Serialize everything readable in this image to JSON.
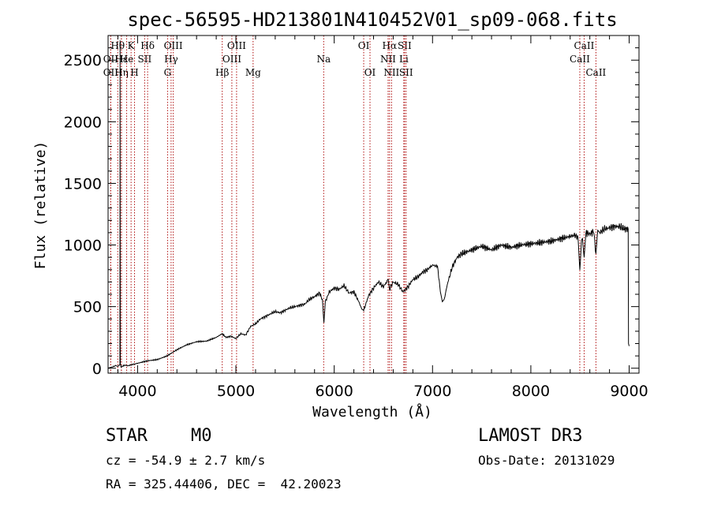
{
  "chart_data": {
    "type": "line",
    "title": "spec-56595-HD213801N410452V01_sp09-068.fits",
    "xlabel": "Wavelength (Å)",
    "ylabel": "Flux (relative)",
    "xlim": [
      3700,
      9100
    ],
    "ylim": [
      -40,
      2700
    ],
    "xticks": [
      4000,
      5000,
      6000,
      7000,
      8000,
      9000
    ],
    "yticks": [
      0,
      500,
      1000,
      1500,
      2000,
      2500
    ],
    "series": [
      {
        "name": "flux",
        "x": [
          3700,
          3780,
          3800,
          3820,
          3822,
          3824,
          3830,
          3870,
          3900,
          3950,
          4000,
          4100,
          4200,
          4300,
          4400,
          4500,
          4600,
          4700,
          4800,
          4860,
          4900,
          4950,
          5000,
          5050,
          5100,
          5150,
          5200,
          5250,
          5300,
          5350,
          5400,
          5450,
          5500,
          5550,
          5600,
          5650,
          5700,
          5750,
          5800,
          5850,
          5880,
          5895,
          5910,
          5950,
          6000,
          6050,
          6100,
          6150,
          6200,
          6250,
          6280,
          6300,
          6350,
          6400,
          6450,
          6500,
          6550,
          6562,
          6600,
          6650,
          6700,
          6750,
          6800,
          6850,
          6900,
          6950,
          7000,
          7020,
          7050,
          7080,
          7100,
          7120,
          7150,
          7200,
          7250,
          7300,
          7400,
          7500,
          7600,
          7700,
          7800,
          7900,
          8000,
          8100,
          8200,
          8300,
          8400,
          8450,
          8480,
          8498,
          8520,
          8542,
          8560,
          8600,
          8640,
          8662,
          8680,
          8700,
          8750,
          8800,
          8850,
          8900,
          8950,
          8990,
          8993,
          9000
        ],
        "y": [
          0,
          20,
          15,
          30,
          2660,
          40,
          10,
          25,
          20,
          30,
          40,
          60,
          70,
          100,
          150,
          190,
          215,
          220,
          250,
          280,
          250,
          260,
          240,
          280,
          270,
          340,
          360,
          400,
          420,
          440,
          460,
          450,
          470,
          490,
          500,
          510,
          520,
          560,
          580,
          610,
          560,
          370,
          540,
          620,
          650,
          640,
          670,
          610,
          620,
          540,
          480,
          470,
          590,
          650,
          700,
          660,
          720,
          640,
          700,
          680,
          620,
          660,
          720,
          740,
          780,
          800,
          840,
          830,
          830,
          620,
          540,
          560,
          680,
          820,
          900,
          930,
          960,
          990,
          960,
          1000,
          980,
          1000,
          1010,
          1020,
          1030,
          1050,
          1070,
          1080,
          1060,
          800,
          1080,
          900,
          1100,
          1090,
          1110,
          930,
          1120,
          1100,
          1130,
          1140,
          1150,
          1150,
          1130,
          1130,
          200,
          180
        ]
      }
    ],
    "line_markers": [
      {
        "label": "Hθ",
        "x": 3798,
        "row": 1
      },
      {
        "label": "OII",
        "x": 3727,
        "row": 2
      },
      {
        "label": "OII",
        "x": 3727,
        "row": 3
      },
      {
        "label": "Hε",
        "x": 3835,
        "row": 2
      },
      {
        "label": "Hη",
        "x": 3836,
        "row": 3
      },
      {
        "label": "K",
        "x": 3934,
        "row": 1
      },
      {
        "label": "He",
        "x": 3889,
        "row": 2
      },
      {
        "label": "SII",
        "x": 4072,
        "row": 2
      },
      {
        "label": "H",
        "x": 3969,
        "row": 3
      },
      {
        "label": "Hδ",
        "x": 4102,
        "row": 1
      },
      {
        "label": "OIII",
        "x": 4363,
        "row": 1
      },
      {
        "label": "Hγ",
        "x": 4341,
        "row": 2
      },
      {
        "label": "G",
        "x": 4305,
        "row": 3
      },
      {
        "label": "Hβ",
        "x": 4861,
        "row": 3
      },
      {
        "label": "OIII",
        "x": 5007,
        "row": 1
      },
      {
        "label": "OIII",
        "x": 4959,
        "row": 2
      },
      {
        "label": "Mg",
        "x": 5175,
        "row": 3
      },
      {
        "label": "Na",
        "x": 5893,
        "row": 2
      },
      {
        "label": "OI",
        "x": 6300,
        "row": 1
      },
      {
        "label": "OI",
        "x": 6364,
        "row": 3
      },
      {
        "label": "Hα",
        "x": 6563,
        "row": 1
      },
      {
        "label": "NII",
        "x": 6548,
        "row": 2
      },
      {
        "label": "NII",
        "x": 6583,
        "row": 3
      },
      {
        "label": "Li",
        "x": 6708,
        "row": 2
      },
      {
        "label": "SII",
        "x": 6716,
        "row": 1
      },
      {
        "label": "SII",
        "x": 6731,
        "row": 3
      },
      {
        "label": "CaII",
        "x": 8542,
        "row": 1
      },
      {
        "label": "CaII",
        "x": 8498,
        "row": 2
      },
      {
        "label": "CaII",
        "x": 8662,
        "row": 3
      }
    ],
    "colors": {
      "line": "#000000",
      "marker": "#b01010",
      "axis": "#000000"
    }
  },
  "footer": {
    "object_class": "STAR",
    "subclass": "M0",
    "survey": "LAMOST DR3",
    "redshift": "cz = -54.9 ± 2.7 km/s",
    "obs_date": "Obs-Date: 20131029",
    "coords": "RA = 325.44406, DEC =  42.20023"
  }
}
